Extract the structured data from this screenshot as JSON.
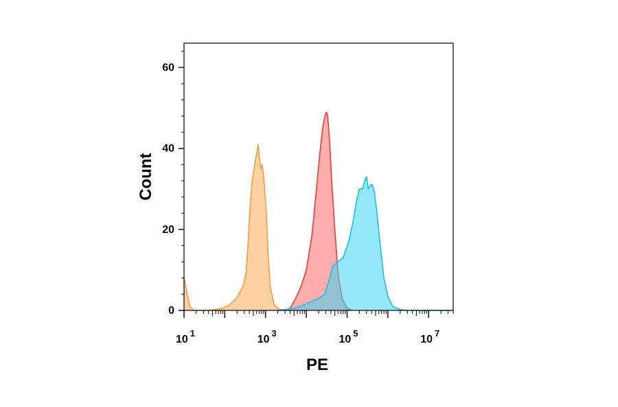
{
  "chart_data": {
    "type": "area",
    "xlabel": "PE",
    "ylabel": "Count",
    "x_scale": "log10",
    "xlim": [
      10,
      40000000
    ],
    "ylim": [
      0,
      66
    ],
    "x_ticks": [
      {
        "base": "10",
        "exp": "1",
        "value": 10
      },
      {
        "base": "10",
        "exp": "3",
        "value": 1000
      },
      {
        "base": "10",
        "exp": "5",
        "value": 100000
      },
      {
        "base": "10",
        "exp": "7",
        "value": 10000000
      }
    ],
    "y_ticks": [
      {
        "label": "0",
        "value": 0
      },
      {
        "label": "20",
        "value": 20
      },
      {
        "label": "40",
        "value": 40
      },
      {
        "label": "60",
        "value": 60
      }
    ],
    "grid": false,
    "legend": "none",
    "series": [
      {
        "color": "#ffb366",
        "stroke": "#f59c45",
        "opacity": 0.6,
        "points": [
          [
            10,
            8
          ],
          [
            12,
            4
          ],
          [
            14,
            1
          ],
          [
            17,
            0
          ],
          [
            40,
            0
          ],
          [
            80,
            0.4
          ],
          [
            130,
            1.3
          ],
          [
            200,
            3.2
          ],
          [
            280,
            6
          ],
          [
            330,
            9
          ],
          [
            370,
            16
          ],
          [
            420,
            26
          ],
          [
            470,
            32
          ],
          [
            540,
            36
          ],
          [
            610,
            39
          ],
          [
            660,
            41
          ],
          [
            700,
            38
          ],
          [
            760,
            35
          ],
          [
            820,
            36
          ],
          [
            880,
            34
          ],
          [
            950,
            30
          ],
          [
            1050,
            24
          ],
          [
            1150,
            14
          ],
          [
            1300,
            6
          ],
          [
            1600,
            1.5
          ],
          [
            2100,
            0.3
          ],
          [
            3000,
            0
          ]
        ]
      },
      {
        "color": "#ff6b6b",
        "stroke": "#e73c3c",
        "opacity": 0.55,
        "points": [
          [
            3000,
            0
          ],
          [
            4000,
            0.5
          ],
          [
            5500,
            3
          ],
          [
            7500,
            6
          ],
          [
            10000,
            10
          ],
          [
            13500,
            18
          ],
          [
            17000,
            28
          ],
          [
            21000,
            38
          ],
          [
            25000,
            45
          ],
          [
            28500,
            48
          ],
          [
            31000,
            49
          ],
          [
            33500,
            48
          ],
          [
            37000,
            42
          ],
          [
            42000,
            32
          ],
          [
            50000,
            20
          ],
          [
            60000,
            9
          ],
          [
            75000,
            3
          ],
          [
            100000,
            0.5
          ],
          [
            130000,
            0
          ]
        ]
      },
      {
        "color": "#3dd6f5",
        "stroke": "#23b9e6",
        "opacity": 0.55,
        "points": [
          [
            2000,
            0
          ],
          [
            5000,
            0.5
          ],
          [
            8000,
            1.2
          ],
          [
            12000,
            2
          ],
          [
            20000,
            3
          ],
          [
            28000,
            4
          ],
          [
            35000,
            7
          ],
          [
            45000,
            11
          ],
          [
            60000,
            12
          ],
          [
            80000,
            13
          ],
          [
            110000,
            17
          ],
          [
            140000,
            22
          ],
          [
            170000,
            27
          ],
          [
            200000,
            30
          ],
          [
            240000,
            30
          ],
          [
            270000,
            32
          ],
          [
            300000,
            33
          ],
          [
            330000,
            30
          ],
          [
            380000,
            31
          ],
          [
            420000,
            31
          ],
          [
            470000,
            29
          ],
          [
            540000,
            24
          ],
          [
            650000,
            16
          ],
          [
            800000,
            8
          ],
          [
            1000000,
            3.5
          ],
          [
            1300000,
            1
          ],
          [
            2000000,
            0.2
          ],
          [
            3000000,
            0
          ],
          [
            40000000,
            0
          ]
        ]
      }
    ]
  }
}
